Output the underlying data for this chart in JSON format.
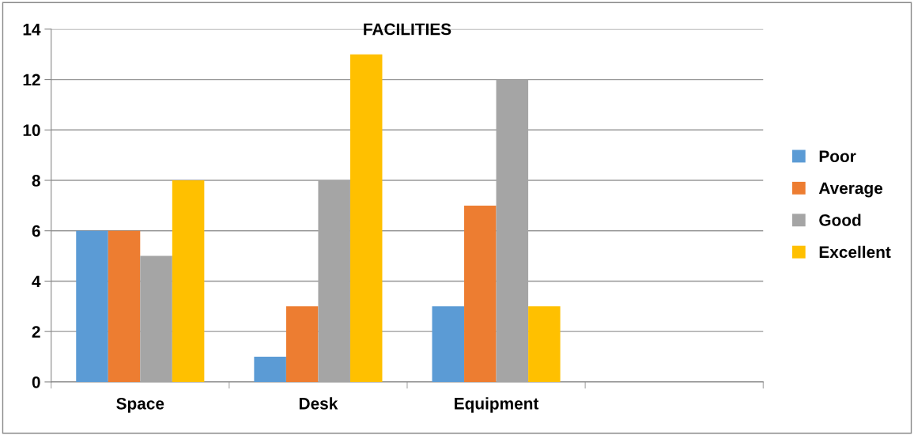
{
  "chart_data": {
    "type": "bar",
    "title": "FACILITIES",
    "categories": [
      "Space",
      "Desk",
      "Equipment",
      null
    ],
    "series": [
      {
        "name": "Poor",
        "color": "#5b9bd5",
        "values": [
          6,
          1,
          3,
          null
        ]
      },
      {
        "name": "Average",
        "color": "#ed7d31",
        "values": [
          6,
          3,
          7,
          null
        ]
      },
      {
        "name": "Good",
        "color": "#a5a5a5",
        "values": [
          5,
          8,
          12,
          null
        ]
      },
      {
        "name": "Excellent",
        "color": "#ffc000",
        "values": [
          8,
          13,
          3,
          null
        ]
      }
    ],
    "ylim": [
      0,
      14
    ],
    "yticks": [
      0,
      2,
      4,
      6,
      8,
      10,
      12,
      14
    ],
    "grid": "y",
    "legend": "right"
  }
}
